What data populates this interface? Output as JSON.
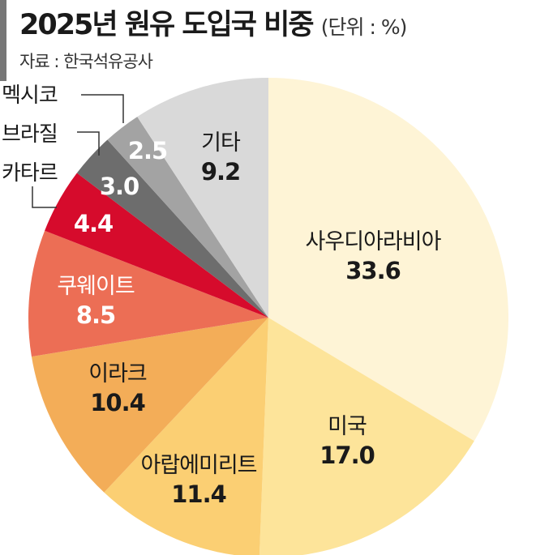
{
  "header": {
    "title": "2025년 원유 도입국 비중",
    "unit": "(단위 : %)",
    "source": "자료 : 한국석유공사"
  },
  "chart_data": {
    "type": "pie",
    "title": "2025년 원유 도입국 비중",
    "unit": "%",
    "start": "12 o'clock, clockwise",
    "categories": [
      "사우디아라비아",
      "미국",
      "아랍에미리트",
      "이라크",
      "쿠웨이트",
      "카타르",
      "브라질",
      "멕시코",
      "기타"
    ],
    "values": [
      33.6,
      17.0,
      11.4,
      10.4,
      8.5,
      4.4,
      3.0,
      2.5,
      9.2
    ],
    "labels": [
      "33.6",
      "17.0",
      "11.4",
      "10.4",
      "8.5",
      "4.4",
      "3.0",
      "2.5",
      "9.2"
    ],
    "colors": [
      "#fef4d6",
      "#fde49a",
      "#fbcf73",
      "#f3ad58",
      "#ec6e55",
      "#d60b2c",
      "#6d6d6d",
      "#a3a3a3",
      "#d9d9d9"
    ]
  }
}
